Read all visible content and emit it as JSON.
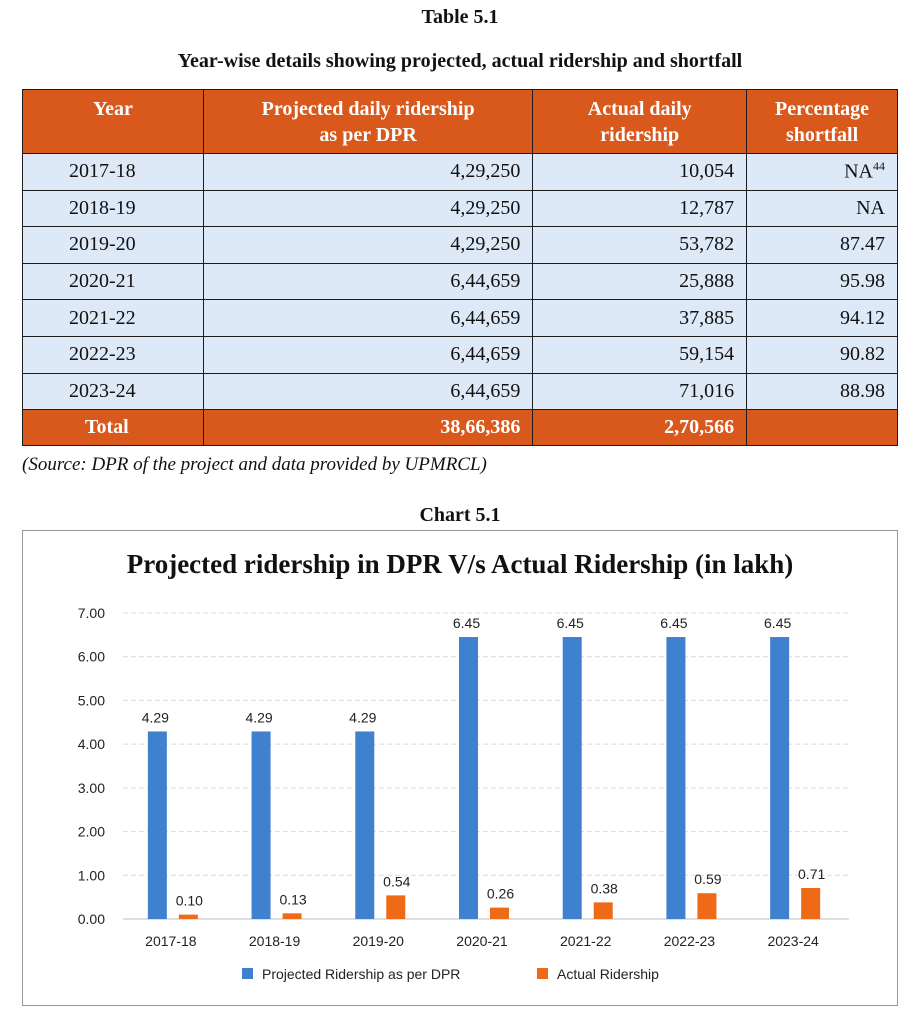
{
  "table": {
    "caption": "Table 5.1",
    "title": "Year-wise details showing projected, actual ridership and shortfall",
    "headers": {
      "year": "Year",
      "projected_line1": "Projected daily ridership",
      "projected_line2": "as per DPR",
      "actual_line1": "Actual daily",
      "actual_line2": "ridership",
      "shortfall_line1": "Percentage",
      "shortfall_line2": "shortfall"
    },
    "rows": [
      {
        "year": "2017-18",
        "projected": "4,29,250",
        "actual": "10,054",
        "shortfall": "NA",
        "footnote": "44"
      },
      {
        "year": "2018-19",
        "projected": "4,29,250",
        "actual": "12,787",
        "shortfall": "NA",
        "footnote": ""
      },
      {
        "year": "2019-20",
        "projected": "4,29,250",
        "actual": "53,782",
        "shortfall": "87.47",
        "footnote": ""
      },
      {
        "year": "2020-21",
        "projected": "6,44,659",
        "actual": "25,888",
        "shortfall": "95.98",
        "footnote": ""
      },
      {
        "year": "2021-22",
        "projected": "6,44,659",
        "actual": "37,885",
        "shortfall": "94.12",
        "footnote": ""
      },
      {
        "year": "2022-23",
        "projected": "6,44,659",
        "actual": "59,154",
        "shortfall": "90.82",
        "footnote": ""
      },
      {
        "year": "2023-24",
        "projected": "6,44,659",
        "actual": "71,016",
        "shortfall": "88.98",
        "footnote": ""
      }
    ],
    "total": {
      "label": "Total",
      "projected": "38,66,386",
      "actual": "2,70,566",
      "shortfall": ""
    },
    "source": "(Source: DPR of the project and data provided by UPMRCL)",
    "colors": {
      "header_bg": "#d9581c",
      "row_bg": "#dde9f7"
    }
  },
  "chart_caption": "Chart 5.1",
  "chart_data": {
    "type": "bar",
    "title": "Projected ridership in DPR V/s Actual Ridership (in lakh)",
    "xlabel": "",
    "ylabel": "",
    "categories": [
      "2017-18",
      "2018-19",
      "2019-20",
      "2020-21",
      "2021-22",
      "2022-23",
      "2023-24"
    ],
    "series": [
      {
        "name": "Projected Ridership as per DPR",
        "color": "#3f80cf",
        "values": [
          4.29,
          4.29,
          4.29,
          6.45,
          6.45,
          6.45,
          6.45
        ],
        "labels": [
          "4.29",
          "4.29",
          "4.29",
          "6.45",
          "6.45",
          "6.45",
          "6.45"
        ]
      },
      {
        "name": "Actual Ridership",
        "color": "#ee6a17",
        "values": [
          0.1,
          0.13,
          0.54,
          0.26,
          0.38,
          0.59,
          0.71
        ],
        "labels": [
          "0.10",
          "0.13",
          "0.54",
          "0.26",
          "0.38",
          "0.59",
          "0.71"
        ]
      }
    ],
    "yticks": [
      "0.00",
      "1.00",
      "2.00",
      "3.00",
      "4.00",
      "5.00",
      "6.00",
      "7.00"
    ],
    "ylim": [
      0,
      7
    ],
    "grid": true,
    "legend_position": "bottom"
  }
}
